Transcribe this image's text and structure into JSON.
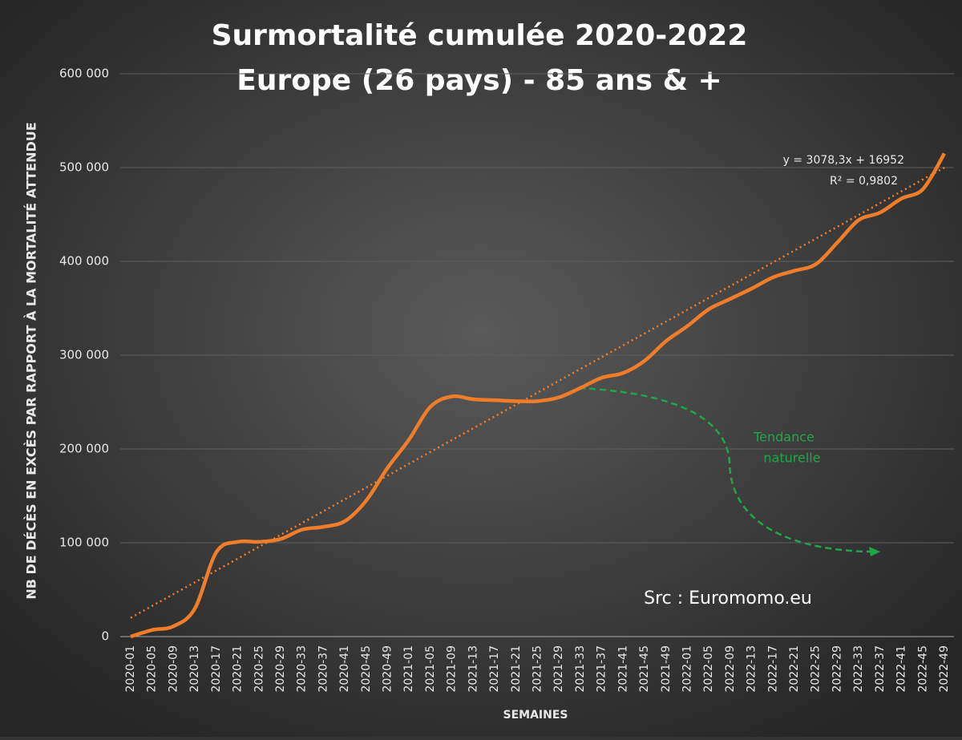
{
  "chart_data": {
    "type": "line",
    "title": "Surmortalité cumulée 2020-2022",
    "subtitle": "Europe (26 pays) - 85 ans & +",
    "y_label": "NB DE DÉCÈS EN EXCÈS PAR RAPPORT À LA MORTALITÉ ATTENDUE",
    "x_label": "SEMAINES",
    "categories": [
      "2020-01",
      "2020-05",
      "2020-09",
      "2020-13",
      "2020-17",
      "2020-21",
      "2020-25",
      "2020-29",
      "2020-33",
      "2020-37",
      "2020-41",
      "2020-45",
      "2020-49",
      "2021-01",
      "2021-05",
      "2021-09",
      "2021-13",
      "2021-17",
      "2021-21",
      "2021-25",
      "2021-29",
      "2021-33",
      "2021-37",
      "2021-41",
      "2021-45",
      "2021-49",
      "2022-01",
      "2022-05",
      "2022-09",
      "2022-13",
      "2022-17",
      "2022-21",
      "2022-25",
      "2022-29",
      "2022-33",
      "2022-37",
      "2022-41",
      "2022-45",
      "2022-49"
    ],
    "series": [
      {
        "name": "Surmortalité cumulée",
        "color": "#f07d2a",
        "values": [
          0,
          7000,
          11000,
          30000,
          90000,
          101000,
          101000,
          104000,
          114000,
          117000,
          123000,
          145000,
          180000,
          210000,
          245000,
          256000,
          253000,
          252000,
          251000,
          251000,
          255000,
          265000,
          276000,
          281000,
          294000,
          315000,
          331000,
          349000,
          360000,
          371000,
          383000,
          390000,
          397000,
          420000,
          444000,
          452000,
          467000,
          477000,
          515000
        ]
      }
    ],
    "trendline": {
      "color": "#f07d2a",
      "start": 20000,
      "end": 500000,
      "equation": "y = 3078,3x + 16952",
      "r2": "R² = 0,9802"
    },
    "annotation": {
      "text1": "Tendance",
      "text2": "naturelle",
      "color": "#1fa64a"
    },
    "source": "Src : Euromomo.eu",
    "ylim": [
      0,
      600000
    ],
    "yticks": [
      0,
      {
        "value": 100000,
        "label": "100 000"
      },
      {
        "value": 200000,
        "label": "200 000"
      },
      {
        "value": 300000,
        "label": "300 000"
      },
      {
        "value": 400000,
        "label": "400 000"
      },
      {
        "value": 500000,
        "label": "500 000"
      },
      {
        "value": 600000,
        "label": "600 000"
      }
    ],
    "grid": true
  }
}
